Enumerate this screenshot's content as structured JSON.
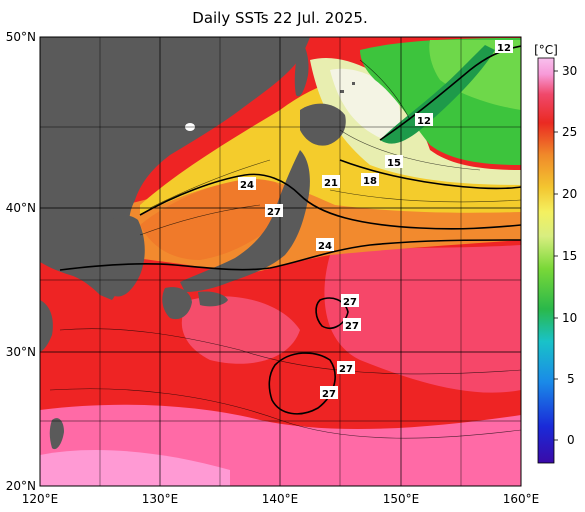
{
  "map": {
    "title": "Daily SSTs 22 Jul. 2025.",
    "lat_labels": [
      "50°N",
      "40°N",
      "30°N",
      "20°N"
    ],
    "lon_labels": [
      "120°E",
      "130°E",
      "140°E",
      "150°E",
      "160°E"
    ],
    "contour_labels": [
      "12",
      "12",
      "15",
      "18",
      "21",
      "24",
      "27",
      "24",
      "27",
      "27",
      "27",
      "27"
    ]
  },
  "colorbar": {
    "unit": "[°C]",
    "ticks": [
      "30",
      "25",
      "20",
      "15",
      "10",
      "5",
      "0"
    ]
  },
  "colors": {
    "land": "#5a5a5a",
    "warm": "#ee2222",
    "hot": "#ff6aa8",
    "orange": "#f59a2e",
    "yellow": "#f7e43a",
    "green": "#3dc63d",
    "white": "#f4f4e4"
  }
}
